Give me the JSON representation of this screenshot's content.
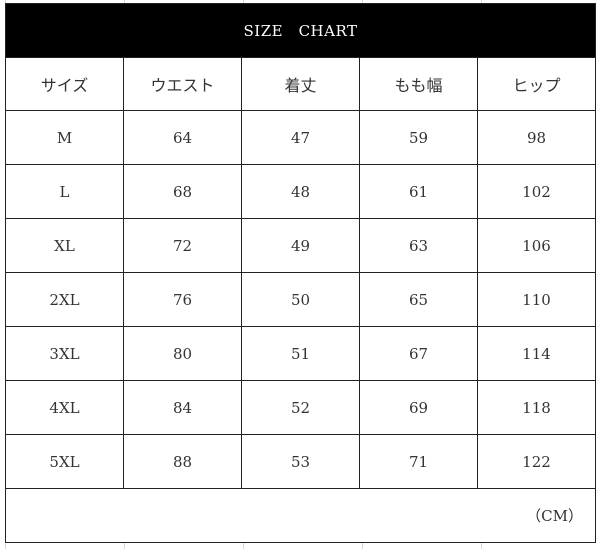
{
  "title": "SIZE　CHART",
  "headers": [
    "サイズ",
    "ウエスト",
    "着丈",
    "もも幅",
    "ヒップ"
  ],
  "rows": [
    [
      "M",
      "64",
      "47",
      "59",
      "98"
    ],
    [
      "L",
      "68",
      "48",
      "61",
      "102"
    ],
    [
      "XL",
      "72",
      "49",
      "63",
      "106"
    ],
    [
      "2XL",
      "76",
      "50",
      "65",
      "110"
    ],
    [
      "3XL",
      "80",
      "51",
      "67",
      "114"
    ],
    [
      "4XL",
      "84",
      "52",
      "69",
      "118"
    ],
    [
      "5XL",
      "88",
      "53",
      "71",
      "122"
    ]
  ],
  "unit": "（CM）"
}
